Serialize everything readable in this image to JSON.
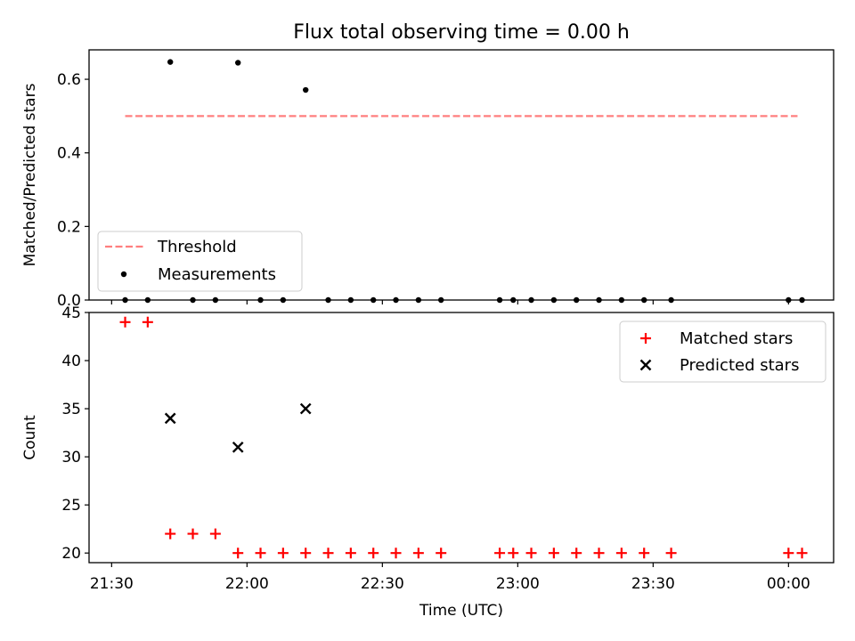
{
  "title": "Flux total observing time = 0.00 h",
  "colors": {
    "threshold": "#ff7f7f",
    "measurement": "#000000",
    "matched": "#ff0000",
    "predicted": "#000000"
  },
  "chart_data": [
    {
      "type": "scatter",
      "panel": "top",
      "title": "Flux total observing time = 0.00 h",
      "xlabel": "",
      "ylabel": "Matched/Predicted stars",
      "xlim": [
        "21:25",
        "00:10"
      ],
      "ylim": [
        0,
        0.68
      ],
      "y_ticks": [
        0.0,
        0.2,
        0.4,
        0.6
      ],
      "y_tick_labels": [
        "0.0",
        "0.2",
        "0.4",
        "0.6"
      ],
      "x_ticks": [
        "21:30",
        "22:00",
        "22:30",
        "23:00",
        "23:30",
        "00:00"
      ],
      "legend_position": "lower-left",
      "series": [
        {
          "name": "Threshold",
          "style": "dashed-line",
          "x": [
            "21:33",
            "00:02"
          ],
          "y": [
            0.5,
            0.5
          ]
        },
        {
          "name": "Measurements",
          "style": "dot",
          "x": [
            "21:33",
            "21:38",
            "21:43",
            "21:48",
            "21:53",
            "21:58",
            "22:03",
            "22:08",
            "22:13",
            "22:18",
            "22:23",
            "22:28",
            "22:33",
            "22:38",
            "22:43",
            "22:56",
            "22:59",
            "23:03",
            "23:08",
            "23:13",
            "23:18",
            "23:23",
            "23:28",
            "23:34",
            "00:00",
            "00:03"
          ],
          "y": [
            0,
            0,
            0.647,
            0,
            0,
            0.645,
            0,
            0,
            0.571,
            0,
            0,
            0,
            0,
            0,
            0,
            0,
            0,
            0,
            0,
            0,
            0,
            0,
            0,
            0,
            0,
            0
          ]
        }
      ]
    },
    {
      "type": "scatter",
      "panel": "bottom",
      "xlabel": "Time (UTC)",
      "ylabel": "Count",
      "xlim": [
        "21:25",
        "00:10"
      ],
      "ylim": [
        19,
        45
      ],
      "y_ticks": [
        20,
        25,
        30,
        35,
        40,
        45
      ],
      "y_tick_labels": [
        "20",
        "25",
        "30",
        "35",
        "40",
        "45"
      ],
      "x_ticks": [
        "21:30",
        "22:00",
        "22:30",
        "23:00",
        "23:30",
        "00:00"
      ],
      "x_tick_labels": [
        "21:30",
        "22:00",
        "22:30",
        "23:00",
        "23:30",
        "00:00"
      ],
      "legend_position": "upper-right",
      "series": [
        {
          "name": "Matched stars",
          "marker": "plus",
          "x": [
            "21:33",
            "21:38",
            "21:43",
            "21:48",
            "21:53",
            "21:58",
            "22:03",
            "22:08",
            "22:13",
            "22:18",
            "22:23",
            "22:28",
            "22:33",
            "22:38",
            "22:43",
            "22:56",
            "22:59",
            "23:03",
            "23:08",
            "23:13",
            "23:18",
            "23:23",
            "23:28",
            "23:34",
            "00:00",
            "00:03"
          ],
          "y": [
            44,
            44,
            22,
            22,
            22,
            20,
            20,
            20,
            20,
            20,
            20,
            20,
            20,
            20,
            20,
            20,
            20,
            20,
            20,
            20,
            20,
            20,
            20,
            20,
            20,
            20
          ]
        },
        {
          "name": "Predicted stars",
          "marker": "x",
          "x": [
            "21:43",
            "21:58",
            "22:13"
          ],
          "y": [
            34,
            31,
            35
          ]
        }
      ]
    }
  ]
}
